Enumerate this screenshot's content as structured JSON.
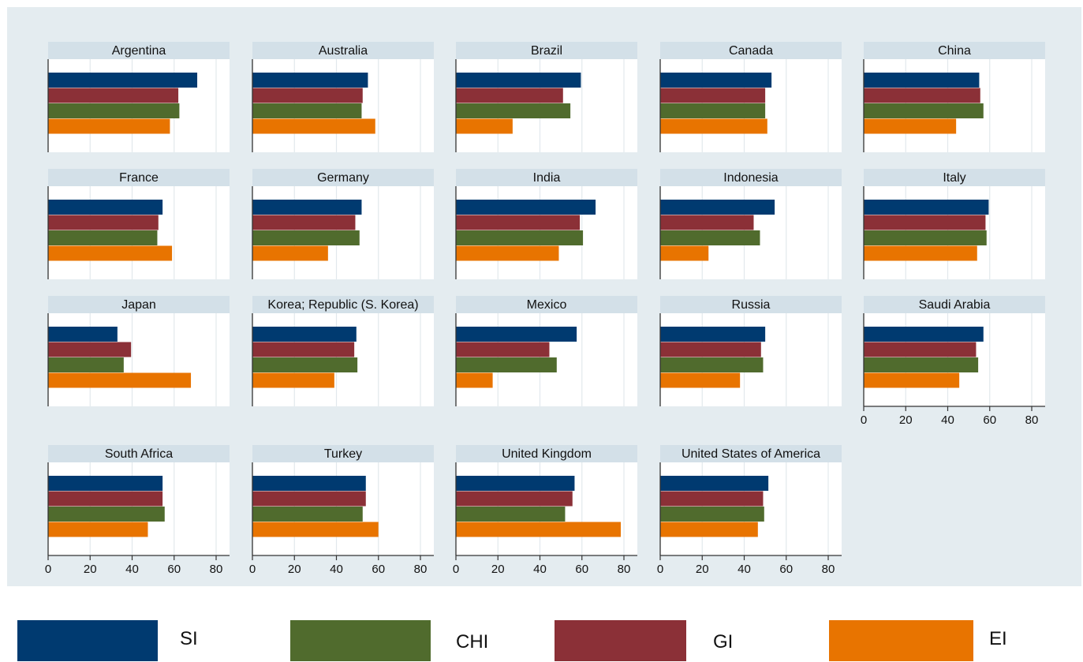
{
  "chart_data": {
    "type": "bar",
    "orientation": "horizontal",
    "layout": "small-multiples",
    "x_ticks": [
      0,
      20,
      40,
      60,
      80
    ],
    "xlim": [
      0,
      86
    ],
    "grid": true,
    "legend_position": "bottom",
    "series": [
      {
        "name": "SI",
        "color": "#003a70"
      },
      {
        "name": "GI",
        "color": "#8b3037"
      },
      {
        "name": "CHI",
        "color": "#506b2d"
      },
      {
        "name": "EI",
        "color": "#e87400"
      }
    ],
    "legend": [
      {
        "label": "SI",
        "color": "#003a70"
      },
      {
        "label": "CHI",
        "color": "#506b2d"
      },
      {
        "label": "GI",
        "color": "#8b3037"
      },
      {
        "label": "EI",
        "color": "#e87400"
      }
    ],
    "panels": [
      {
        "title": "Argentina",
        "values": {
          "SI": 71,
          "GI": 62,
          "CHI": 62.5,
          "EI": 58
        }
      },
      {
        "title": "Australia",
        "values": {
          "SI": 55,
          "GI": 52.5,
          "CHI": 52,
          "EI": 58.5
        }
      },
      {
        "title": "Brazil",
        "values": {
          "SI": 59.5,
          "GI": 51,
          "CHI": 54.5,
          "EI": 27
        }
      },
      {
        "title": "Canada",
        "values": {
          "SI": 53,
          "GI": 50,
          "CHI": 50,
          "EI": 51
        }
      },
      {
        "title": "China",
        "values": {
          "SI": 55,
          "GI": 55.5,
          "CHI": 57,
          "EI": 44
        }
      },
      {
        "title": "France",
        "values": {
          "SI": 54.5,
          "GI": 52.5,
          "CHI": 52,
          "EI": 59
        }
      },
      {
        "title": "Germany",
        "values": {
          "SI": 52,
          "GI": 49,
          "CHI": 51,
          "EI": 36
        }
      },
      {
        "title": "India",
        "values": {
          "SI": 66.5,
          "GI": 59,
          "CHI": 60.5,
          "EI": 49
        }
      },
      {
        "title": "Indonesia",
        "values": {
          "SI": 54.5,
          "GI": 44.5,
          "CHI": 47.5,
          "EI": 23
        }
      },
      {
        "title": "Italy",
        "values": {
          "SI": 59.5,
          "GI": 58,
          "CHI": 58.5,
          "EI": 54
        }
      },
      {
        "title": "Japan",
        "values": {
          "SI": 33,
          "GI": 39.5,
          "CHI": 36,
          "EI": 68
        }
      },
      {
        "title": "Korea; Republic (S. Korea)",
        "values": {
          "SI": 49.5,
          "GI": 48.5,
          "CHI": 50,
          "EI": 39
        }
      },
      {
        "title": "Mexico",
        "values": {
          "SI": 57.5,
          "GI": 44.5,
          "CHI": 48,
          "EI": 17.5
        }
      },
      {
        "title": "Russia",
        "values": {
          "SI": 50,
          "GI": 48,
          "CHI": 49,
          "EI": 38
        }
      },
      {
        "title": "Saudi Arabia",
        "values": {
          "SI": 57,
          "GI": 53.5,
          "CHI": 54.5,
          "EI": 45.5
        }
      },
      {
        "title": "South Africa",
        "values": {
          "SI": 54.5,
          "GI": 54.5,
          "CHI": 55.5,
          "EI": 47.5
        }
      },
      {
        "title": "Turkey",
        "values": {
          "SI": 54,
          "GI": 54,
          "CHI": 52.5,
          "EI": 60
        }
      },
      {
        "title": "United Kingdom",
        "values": {
          "SI": 56.5,
          "GI": 55.5,
          "CHI": 52,
          "EI": 78.5
        }
      },
      {
        "title": "United States of America",
        "values": {
          "SI": 51.5,
          "GI": 49,
          "CHI": 49.5,
          "EI": 46.5
        }
      }
    ]
  }
}
